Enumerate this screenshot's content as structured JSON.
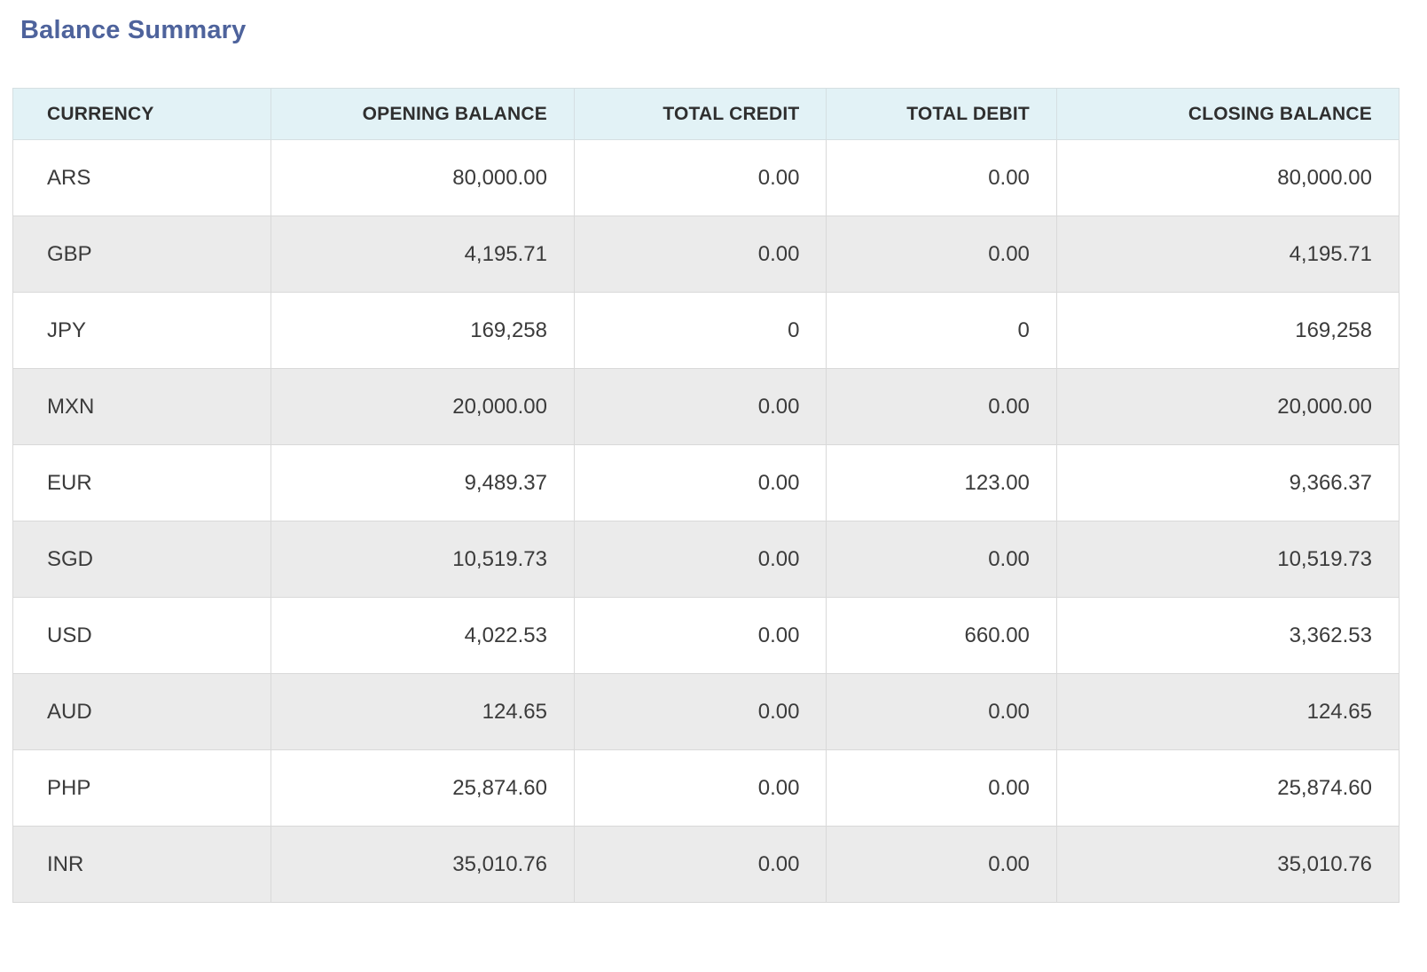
{
  "page": {
    "title": "Balance Summary"
  },
  "colors": {
    "title_text": "#4e639c",
    "header_background": "#e2f2f6",
    "row_alt_background": "#ebebeb",
    "row_background": "#ffffff",
    "cell_text": "#3b3b3b",
    "border": "#d9d9d9"
  },
  "table": {
    "columns": [
      {
        "key": "currency",
        "label": "CURRENCY",
        "align": "left"
      },
      {
        "key": "opening",
        "label": "OPENING BALANCE",
        "align": "right"
      },
      {
        "key": "credit",
        "label": "TOTAL CREDIT",
        "align": "right"
      },
      {
        "key": "debit",
        "label": "TOTAL DEBIT",
        "align": "right"
      },
      {
        "key": "closing",
        "label": "CLOSING BALANCE",
        "align": "right"
      }
    ],
    "rows": [
      {
        "currency": "ARS",
        "opening": "80,000.00",
        "credit": "0.00",
        "debit": "0.00",
        "closing": "80,000.00"
      },
      {
        "currency": "GBP",
        "opening": "4,195.71",
        "credit": "0.00",
        "debit": "0.00",
        "closing": "4,195.71"
      },
      {
        "currency": "JPY",
        "opening": "169,258",
        "credit": "0",
        "debit": "0",
        "closing": "169,258"
      },
      {
        "currency": "MXN",
        "opening": "20,000.00",
        "credit": "0.00",
        "debit": "0.00",
        "closing": "20,000.00"
      },
      {
        "currency": "EUR",
        "opening": "9,489.37",
        "credit": "0.00",
        "debit": "123.00",
        "closing": "9,366.37"
      },
      {
        "currency": "SGD",
        "opening": "10,519.73",
        "credit": "0.00",
        "debit": "0.00",
        "closing": "10,519.73"
      },
      {
        "currency": "USD",
        "opening": "4,022.53",
        "credit": "0.00",
        "debit": "660.00",
        "closing": "3,362.53"
      },
      {
        "currency": "AUD",
        "opening": "124.65",
        "credit": "0.00",
        "debit": "0.00",
        "closing": "124.65"
      },
      {
        "currency": "PHP",
        "opening": "25,874.60",
        "credit": "0.00",
        "debit": "0.00",
        "closing": "25,874.60"
      },
      {
        "currency": "INR",
        "opening": "35,010.76",
        "credit": "0.00",
        "debit": "0.00",
        "closing": "35,010.76"
      }
    ]
  }
}
